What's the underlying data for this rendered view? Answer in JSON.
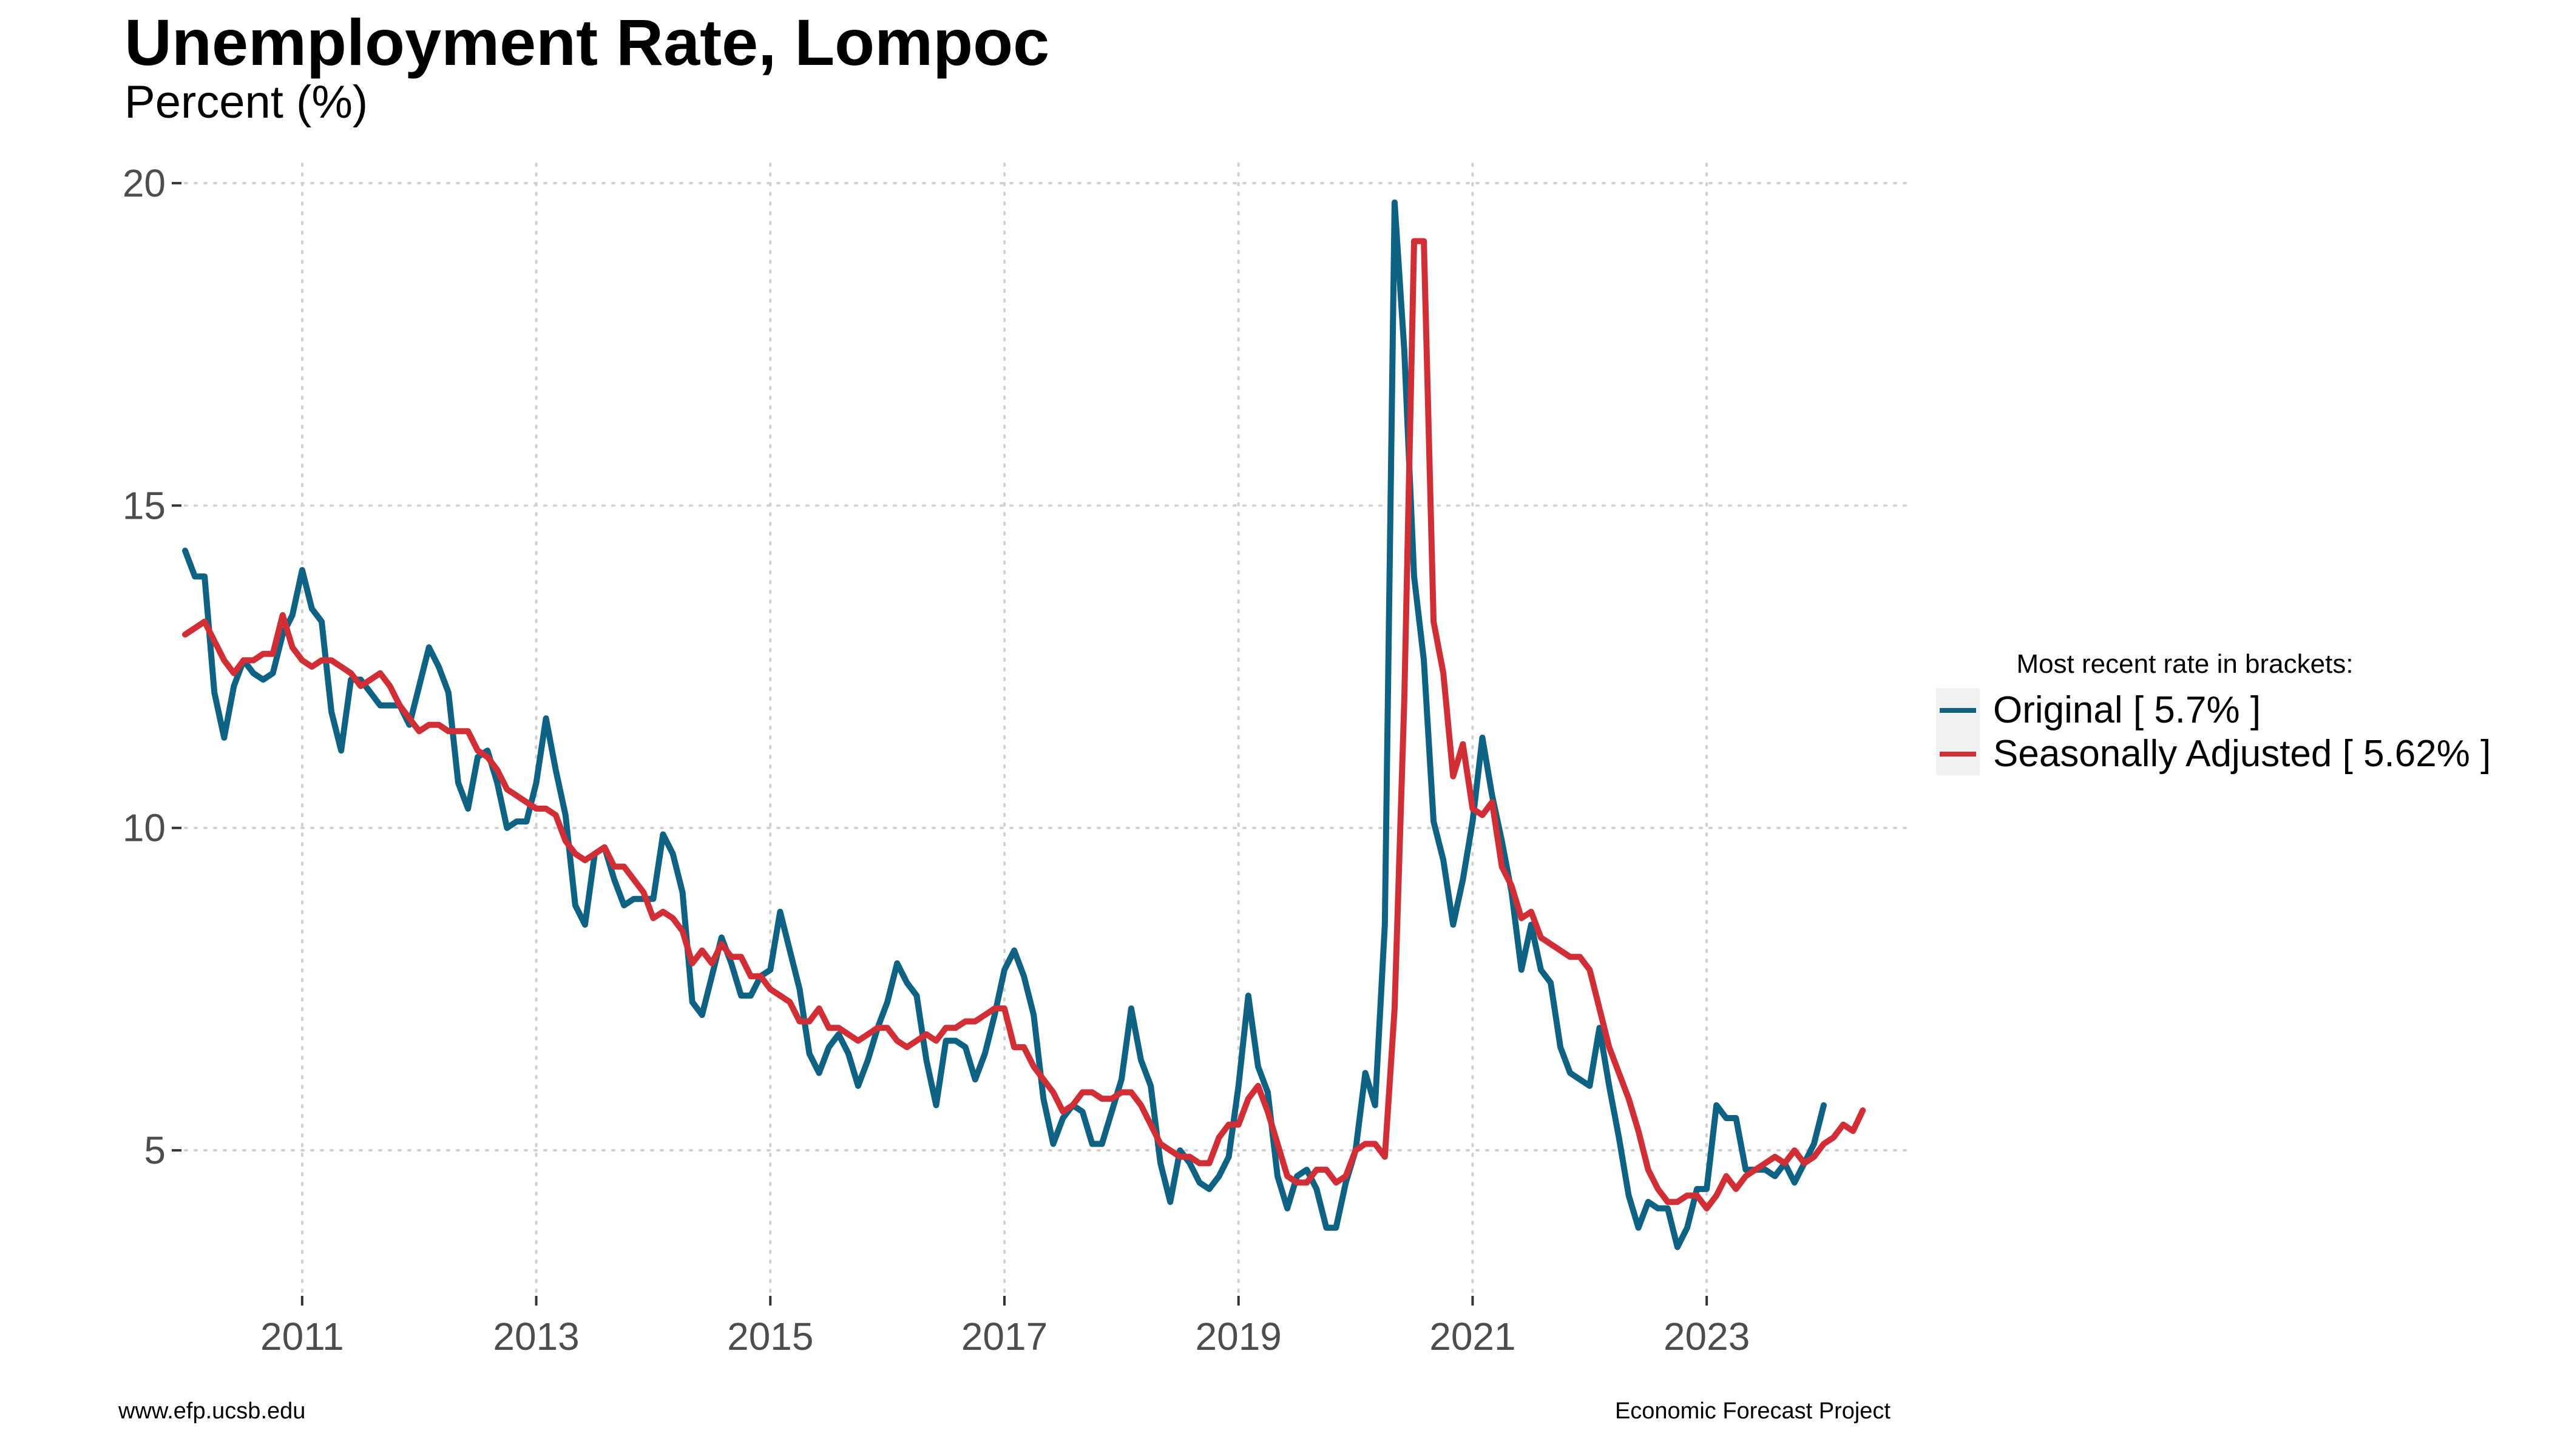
{
  "chart_data": {
    "type": "line",
    "title": "Unemployment Rate, Lompoc",
    "subtitle": "Percent (%)",
    "xlabel": "",
    "ylabel": "",
    "x_ticks": [
      "2011",
      "2013",
      "2015",
      "2017",
      "2019",
      "2021",
      "2023"
    ],
    "y_ticks": [
      5,
      10,
      15,
      20
    ],
    "xlim": [
      2010.0,
      2024.7
    ],
    "ylim": [
      2.8,
      20.3
    ],
    "grid": "dotted",
    "legend_title": "Most recent rate in brackets:",
    "legend_position": "right",
    "x_start": "2010-01",
    "x_end": "2023-12",
    "x_frequency": "monthly",
    "series": [
      {
        "name": "Original [ 5.7% ]",
        "color": "#0e6384",
        "values": [
          14.3,
          13.9,
          13.9,
          12.1,
          11.4,
          12.2,
          12.6,
          12.4,
          12.3,
          12.4,
          13.0,
          13.3,
          14.0,
          13.4,
          13.2,
          11.8,
          11.2,
          12.3,
          12.3,
          12.1,
          11.9,
          11.9,
          11.9,
          11.6,
          12.2,
          12.8,
          12.5,
          12.1,
          10.7,
          10.3,
          11.1,
          11.2,
          10.7,
          10.0,
          10.1,
          10.1,
          10.7,
          11.7,
          10.9,
          10.2,
          8.8,
          8.5,
          9.6,
          9.7,
          9.2,
          8.8,
          8.9,
          8.9,
          8.9,
          9.9,
          9.6,
          9.0,
          7.3,
          7.1,
          7.7,
          8.3,
          7.9,
          7.4,
          7.4,
          7.7,
          7.8,
          8.7,
          8.1,
          7.5,
          6.5,
          6.2,
          6.6,
          6.8,
          6.5,
          6.0,
          6.4,
          6.9,
          7.3,
          7.9,
          7.6,
          7.4,
          6.4,
          5.7,
          6.7,
          6.7,
          6.6,
          6.1,
          6.5,
          7.1,
          7.8,
          8.1,
          7.7,
          7.1,
          5.8,
          5.1,
          5.5,
          5.7,
          5.6,
          5.1,
          5.1,
          5.6,
          6.1,
          7.2,
          6.4,
          6.0,
          4.8,
          4.2,
          5.0,
          4.8,
          4.5,
          4.4,
          4.6,
          4.9,
          6.0,
          7.4,
          6.3,
          5.9,
          4.6,
          4.1,
          4.6,
          4.7,
          4.4,
          3.8,
          3.8,
          4.5,
          5.0,
          6.2,
          5.7,
          8.5,
          19.7,
          17.4,
          13.9,
          12.6,
          10.1,
          9.5,
          8.5,
          9.2,
          10.1,
          11.4,
          10.5,
          9.8,
          9.0,
          7.8,
          8.5,
          7.8,
          7.6,
          6.6,
          6.2,
          6.1,
          6.0,
          6.9,
          6.0,
          5.2,
          4.3,
          3.8,
          4.2,
          4.1,
          4.1,
          3.5,
          3.8,
          4.4,
          4.4,
          5.7,
          5.5,
          5.5,
          4.7,
          4.7,
          4.7,
          4.6,
          4.8,
          4.5,
          4.8,
          5.1,
          5.7
        ]
      },
      {
        "name": "Seasonally Adjusted [ 5.62% ]",
        "color": "#d12f35",
        "values": [
          13.0,
          13.1,
          13.2,
          12.9,
          12.6,
          12.4,
          12.6,
          12.6,
          12.7,
          12.7,
          13.3,
          12.8,
          12.6,
          12.5,
          12.6,
          12.6,
          12.5,
          12.4,
          12.2,
          12.3,
          12.4,
          12.2,
          11.9,
          11.7,
          11.5,
          11.6,
          11.6,
          11.5,
          11.5,
          11.5,
          11.2,
          11.1,
          10.9,
          10.6,
          10.5,
          10.4,
          10.3,
          10.3,
          10.2,
          9.8,
          9.6,
          9.5,
          9.6,
          9.7,
          9.4,
          9.4,
          9.2,
          9.0,
          8.6,
          8.7,
          8.6,
          8.4,
          7.9,
          8.1,
          7.9,
          8.2,
          8.0,
          8.0,
          7.7,
          7.7,
          7.5,
          7.4,
          7.3,
          7.0,
          7.0,
          7.2,
          6.9,
          6.9,
          6.8,
          6.7,
          6.8,
          6.9,
          6.9,
          6.7,
          6.6,
          6.7,
          6.8,
          6.7,
          6.9,
          6.9,
          7.0,
          7.0,
          7.1,
          7.2,
          7.2,
          6.6,
          6.6,
          6.3,
          6.1,
          5.9,
          5.6,
          5.7,
          5.9,
          5.9,
          5.8,
          5.8,
          5.9,
          5.9,
          5.7,
          5.4,
          5.1,
          5.0,
          4.9,
          4.9,
          4.8,
          4.8,
          5.2,
          5.4,
          5.4,
          5.8,
          6.0,
          5.6,
          5.1,
          4.6,
          4.5,
          4.5,
          4.7,
          4.7,
          4.5,
          4.6,
          5.0,
          5.1,
          5.1,
          4.9,
          7.2,
          12.0,
          19.1,
          19.1,
          13.2,
          12.4,
          10.8,
          11.3,
          10.3,
          10.2,
          10.4,
          9.4,
          9.1,
          8.6,
          8.7,
          8.3,
          8.2,
          8.1,
          8.0,
          8.0,
          7.8,
          7.2,
          6.6,
          6.2,
          5.8,
          5.3,
          4.7,
          4.4,
          4.2,
          4.2,
          4.3,
          4.3,
          4.1,
          4.3,
          4.6,
          4.4,
          4.6,
          4.7,
          4.8,
          4.9,
          4.8,
          5.0,
          4.8,
          4.9,
          5.1,
          5.2,
          5.4,
          5.3,
          5.62
        ]
      }
    ]
  },
  "footer": {
    "left": "www.efp.ucsb.edu",
    "right": "Economic Forecast Project"
  }
}
